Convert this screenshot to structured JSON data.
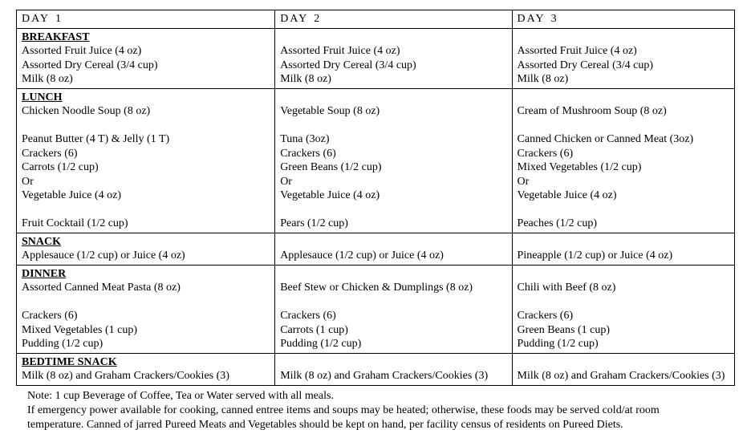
{
  "header": {
    "day_label": "DAY",
    "day_numbers": [
      "1",
      "2",
      "3"
    ]
  },
  "meals": {
    "breakfast": {
      "label": "BREAKFAST",
      "day1": [
        "Assorted Fruit Juice (4 oz)",
        "Assorted Dry Cereal (3/4 cup)",
        "Milk (8 oz)"
      ],
      "day2": [
        "Assorted Fruit Juice (4 oz)",
        "Assorted Dry Cereal (3/4 cup)",
        "Milk (8 oz)"
      ],
      "day3": [
        "Assorted Fruit Juice (4 oz)",
        "Assorted Dry Cereal (3/4 cup)",
        "Milk (8 oz)"
      ]
    },
    "lunch": {
      "label": "LUNCH",
      "day1": [
        "Chicken Noodle Soup (8 oz)",
        "",
        "Peanut Butter (4 T) & Jelly (1 T)",
        "Crackers (6)",
        "Carrots (1/2 cup)",
        "Or",
        "Vegetable Juice (4 oz)",
        "",
        "Fruit Cocktail (1/2 cup)"
      ],
      "day2": [
        "Vegetable Soup (8 oz)",
        "",
        "Tuna (3oz)",
        "Crackers (6)",
        "Green Beans (1/2 cup)",
        "Or",
        "Vegetable Juice (4 oz)",
        "",
        "Pears (1/2 cup)"
      ],
      "day3": [
        "Cream of Mushroom Soup (8 oz)",
        "",
        "Canned Chicken or Canned Meat (3oz)",
        "Crackers (6)",
        "Mixed Vegetables (1/2 cup)",
        "Or",
        "Vegetable Juice (4 oz)",
        "",
        "Peaches (1/2 cup)"
      ]
    },
    "snack": {
      "label": "SNACK",
      "day1": [
        "Applesauce (1/2 cup) or Juice (4 oz)"
      ],
      "day2": [
        "Applesauce (1/2 cup) or Juice (4 oz)"
      ],
      "day3": [
        "Pineapple (1/2 cup) or Juice (4 oz)"
      ]
    },
    "dinner": {
      "label": "DINNER",
      "day1": [
        "Assorted Canned Meat Pasta  (8 oz)",
        "",
        "Crackers (6)",
        "Mixed Vegetables (1 cup)",
        "Pudding (1/2 cup)"
      ],
      "day2": [
        "Beef Stew or Chicken & Dumplings  (8 oz)",
        "",
        "Crackers (6)",
        "Carrots (1 cup)",
        "Pudding (1/2 cup)"
      ],
      "day3": [
        "Chili with Beef (8 oz)",
        "",
        "Crackers (6)",
        "Green Beans (1 cup)",
        "Pudding (1/2 cup)"
      ]
    },
    "bedtime": {
      "label": "BEDTIME SNACK",
      "day1": [
        "Milk (8 oz) and Graham Crackers/Cookies (3)"
      ],
      "day2": [
        "Milk (8 oz) and Graham Crackers/Cookies (3)"
      ],
      "day3": [
        "Milk (8 oz) and Graham Crackers/Cookies (3)"
      ]
    }
  },
  "notes": {
    "line1": "Note:  1 cup Beverage of Coffee, Tea or Water served with all meals.",
    "line2": "If emergency power available for cooking, canned entree items and soups may be heated; otherwise, these foods may be served cold/at room",
    "line3": "temperature.      Canned of jarred Pureed Meats and Vegetables should be kept on hand, per facility census of residents on Pureed Diets."
  },
  "style": {
    "font_family": "Times New Roman",
    "font_size_pt": 11,
    "border_color": "#000000",
    "background_color": "#ffffff",
    "text_color": "#000000"
  }
}
